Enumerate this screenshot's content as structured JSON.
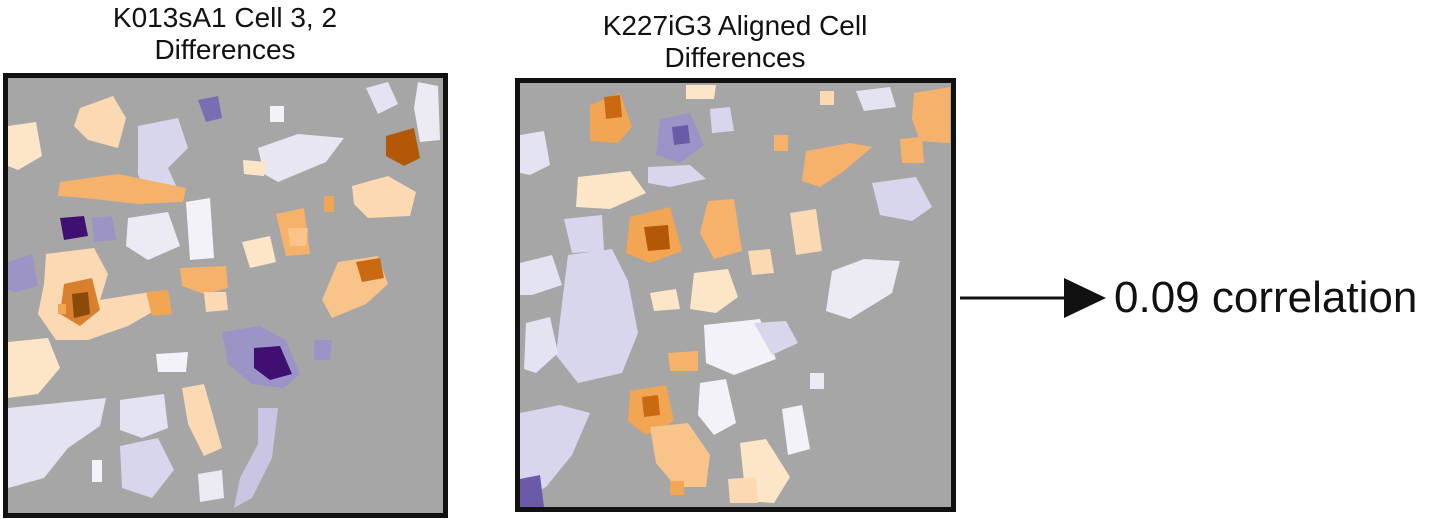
{
  "left_panel": {
    "title_line1": "K013sA1 Cell 3, 2",
    "title_line2": "Differences"
  },
  "right_panel": {
    "title_line1": "K227iG3 Aligned Cell",
    "title_line2": "Differences"
  },
  "result": {
    "label": "0.09 correlation"
  },
  "colors": {
    "background_gray": "#a6a6a6",
    "positive_light": "#fde6c8",
    "positive_mid": "#f2a552",
    "positive_dark": "#b35806",
    "negative_light": "#e4e3f1",
    "negative_mid": "#9c94c7",
    "negative_dark": "#3f0f72",
    "border": "#111111"
  }
}
